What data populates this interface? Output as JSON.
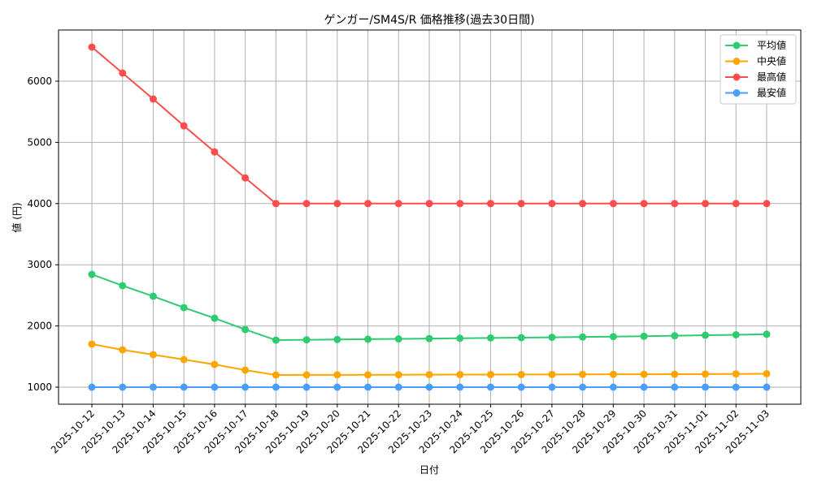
{
  "chart_data": {
    "type": "line",
    "title": "ゲンガー/SM4S/R 価格推移(過去30日間)",
    "xlabel": "日付",
    "ylabel": "値 (円)",
    "ylim": [
      720,
      6830
    ],
    "yticks": [
      1000,
      2000,
      3000,
      4000,
      5000,
      6000
    ],
    "grid": true,
    "legend_position": "upper right",
    "categories": [
      "2025-10-12",
      "2025-10-13",
      "2025-10-14",
      "2025-10-15",
      "2025-10-16",
      "2025-10-17",
      "2025-10-18",
      "2025-10-19",
      "2025-10-20",
      "2025-10-21",
      "2025-10-22",
      "2025-10-23",
      "2025-10-24",
      "2025-10-25",
      "2025-10-26",
      "2025-10-27",
      "2025-10-28",
      "2025-10-29",
      "2025-10-30",
      "2025-10-31",
      "2025-11-01",
      "2025-11-02",
      "2025-11-03"
    ],
    "series": [
      {
        "name": "平均値",
        "color": "#2ecc71",
        "values": [
          2843,
          2658,
          2485,
          2300,
          2127,
          1942,
          1769,
          1774,
          1779,
          1784,
          1789,
          1794,
          1799,
          1804,
          1809,
          1814,
          1820,
          1826,
          1832,
          1840,
          1848,
          1856,
          1865
        ]
      },
      {
        "name": "中央値",
        "color": "#ffa500",
        "values": [
          1703,
          1610,
          1531,
          1451,
          1371,
          1279,
          1199,
          1200,
          1201,
          1202,
          1203,
          1204,
          1205,
          1206,
          1207,
          1208,
          1209,
          1210,
          1211,
          1212,
          1214,
          1216,
          1219
        ]
      },
      {
        "name": "最高値",
        "color": "#ff4d4d",
        "values": [
          6557,
          6133,
          5708,
          5270,
          4844,
          4420,
          4000,
          4000,
          4000,
          4000,
          4000,
          4000,
          4000,
          4000,
          4000,
          4000,
          4000,
          4000,
          4000,
          4000,
          4000,
          4000,
          4000
        ]
      },
      {
        "name": "最安値",
        "color": "#4a9eff",
        "values": [
          1000,
          1000,
          1000,
          1000,
          1000,
          1000,
          1000,
          1000,
          1000,
          1000,
          1000,
          1000,
          1000,
          1000,
          1000,
          1000,
          1000,
          1000,
          1000,
          1000,
          1000,
          1000,
          1000
        ]
      }
    ]
  }
}
